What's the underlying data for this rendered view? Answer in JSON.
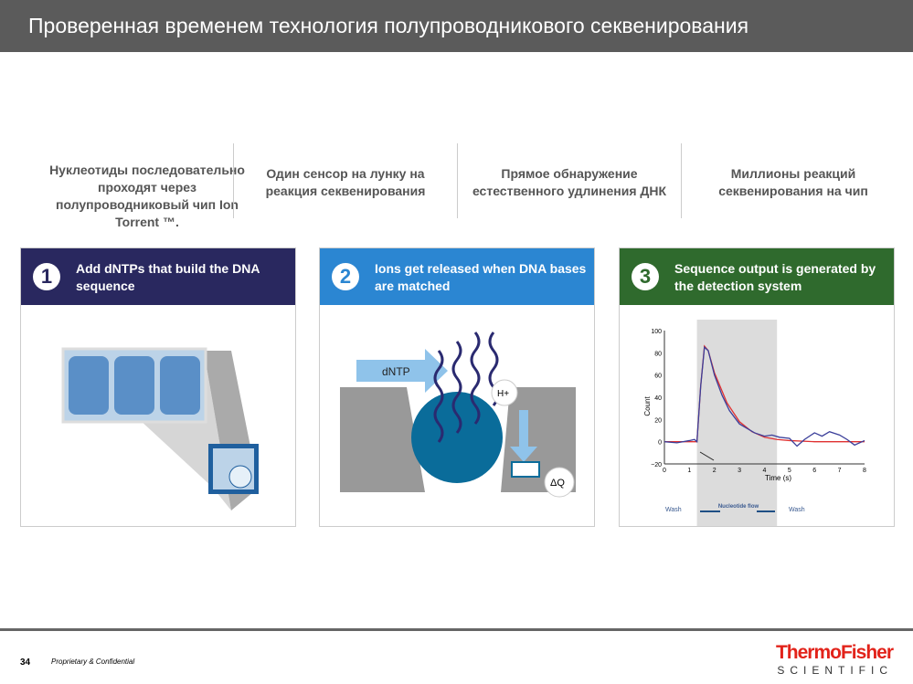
{
  "title": "Проверенная временем технология полупроводникового секвенирования",
  "columns": [
    {
      "text": "Нуклеотиды последовательно проходят через полупроводниковый чип Ion Torrent ™."
    },
    {
      "text": "Один сенсор на лунку на реакция секвенирования"
    },
    {
      "text": "Прямое обнаружение естественного удлинения ДНК"
    },
    {
      "text": "Миллионы реакций секвенирования на чип"
    }
  ],
  "panels": [
    {
      "number": "1",
      "text": "Add dNTPs that build the DNA sequence",
      "color": "#29285f"
    },
    {
      "number": "2",
      "text": "Ions get released when DNA bases are matched",
      "color": "#2b86d2",
      "labels": {
        "dntp": "dNTP",
        "hplus": "H+",
        "dq": "ΔQ"
      }
    },
    {
      "number": "3",
      "text": "Sequence output is generated by the detection system",
      "color": "#2f6a2d"
    }
  ],
  "chart_data": {
    "type": "line",
    "xlabel": "Time (s)",
    "ylabel": "Count",
    "xlim": [
      0,
      8
    ],
    "ylim": [
      -20,
      100
    ],
    "xticks": [
      "0",
      "1",
      "2",
      "3",
      "4",
      "5",
      "6",
      "7",
      "8"
    ],
    "yticks": [
      "−20",
      "0",
      "20",
      "40",
      "60",
      "80",
      "100"
    ],
    "shaded_region": [
      1.3,
      4.5
    ],
    "annotations": {
      "wash_left": "Wash",
      "flow": "Nucleotide flow",
      "wash_right": "Wash"
    },
    "series": [
      {
        "color": "#3b3f9a",
        "x": [
          0,
          0.5,
          1,
          1.2,
          1.3,
          1.45,
          1.6,
          1.75,
          2,
          2.3,
          2.6,
          3,
          3.3,
          3.6,
          4,
          4.3,
          4.6,
          5,
          5.3,
          5.6,
          6,
          6.3,
          6.6,
          7,
          7.3,
          7.6,
          8
        ],
        "y": [
          0,
          -1,
          1,
          2,
          0,
          50,
          85,
          82,
          60,
          42,
          28,
          16,
          12,
          8,
          5,
          6,
          4,
          3,
          -4,
          2,
          8,
          5,
          9,
          6,
          2,
          -3,
          1
        ]
      },
      {
        "color": "#e03030",
        "x": [
          0,
          1.3,
          1.45,
          1.6,
          1.75,
          2,
          2.5,
          3,
          3.5,
          4,
          4.5,
          5,
          6,
          7,
          8
        ],
        "y": [
          0,
          0,
          50,
          86,
          82,
          62,
          35,
          18,
          9,
          4,
          2,
          1,
          0,
          0,
          0
        ]
      }
    ]
  },
  "footer": {
    "page": "34",
    "confidential": "Proprietary & Confidential",
    "logo_top": "ThermoFisher",
    "logo_bottom": "SCIENTIFIC"
  }
}
